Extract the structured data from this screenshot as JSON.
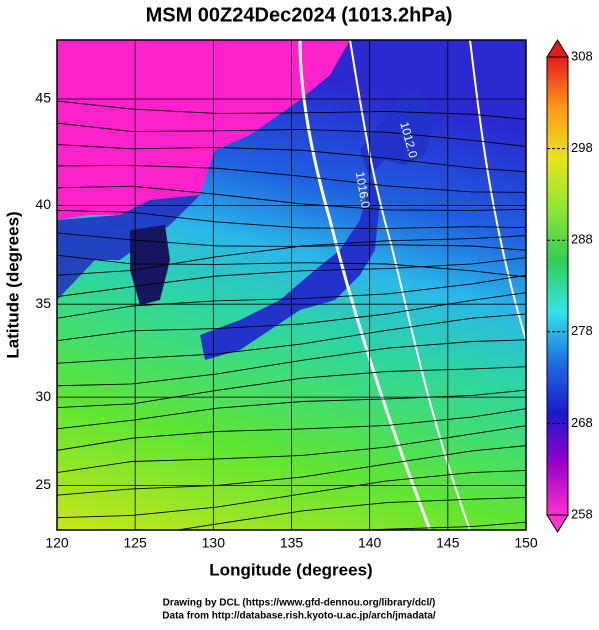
{
  "title": "MSM 00Z24Dec2024 (1013.2hPa)",
  "map": {
    "xlabel": "Longitude (degrees)",
    "ylabel": "Latitude  (degrees)",
    "xlim": [
      120,
      150
    ],
    "ylim": [
      22.4,
      47.6
    ],
    "projection": "mercator",
    "xticks": [
      120,
      125,
      130,
      135,
      140,
      145,
      150
    ],
    "yticks": [
      25,
      30,
      35,
      40,
      45
    ],
    "grid": true,
    "contour_labels": [
      "1016.0",
      "1012.0"
    ]
  },
  "colorbar": {
    "lim": [
      258,
      308
    ],
    "ticks": [
      258,
      268,
      278,
      288,
      298,
      308
    ],
    "colors": [
      "#ff33cc",
      "#9900cc",
      "#1a1acc",
      "#1e6fe0",
      "#33e6e6",
      "#33cc55",
      "#8fe633",
      "#e6e619",
      "#ff9919",
      "#e61a1a"
    ]
  },
  "footer": [
    "Drawing by DCL (https://www.gfd-dennou.org/library/dcl/)",
    "Data from http://database.rish.kyoto-u.ac.jp/arch/jmadata/"
  ]
}
